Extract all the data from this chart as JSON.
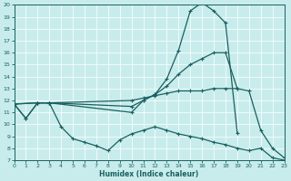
{
  "xlabel": "Humidex (Indice chaleur)",
  "xlim": [
    0,
    23
  ],
  "ylim": [
    7,
    20
  ],
  "xticks": [
    0,
    1,
    2,
    3,
    4,
    5,
    6,
    7,
    8,
    9,
    10,
    11,
    12,
    13,
    14,
    15,
    16,
    17,
    18,
    19,
    20,
    21,
    22,
    23
  ],
  "yticks": [
    7,
    8,
    9,
    10,
    11,
    12,
    13,
    14,
    15,
    16,
    17,
    18,
    19,
    20
  ],
  "background_color": "#c8ecec",
  "line_color": "#1a6060",
  "curve1": {
    "x": [
      0,
      1,
      2,
      3,
      10,
      11,
      12,
      13,
      14,
      15,
      16,
      17,
      18,
      19
    ],
    "y": [
      11.7,
      10.5,
      11.8,
      11.8,
      11.0,
      12.0,
      12.5,
      13.8,
      16.2,
      19.5,
      20.2,
      19.5,
      18.5,
      9.3
    ]
  },
  "curve2": {
    "x": [
      0,
      2,
      3,
      10,
      11,
      12,
      13,
      14,
      15,
      16,
      17,
      18,
      19
    ],
    "y": [
      11.7,
      11.8,
      11.8,
      11.5,
      12.0,
      12.5,
      13.2,
      14.2,
      15.0,
      15.5,
      16.0,
      16.0,
      13.0
    ]
  },
  "curve3": {
    "x": [
      0,
      2,
      3,
      10,
      11,
      12,
      13,
      14,
      15,
      16,
      17,
      18,
      19,
      20,
      21,
      22,
      23
    ],
    "y": [
      11.7,
      11.8,
      11.8,
      12.0,
      12.2,
      12.4,
      12.6,
      12.8,
      12.8,
      12.8,
      13.0,
      13.0,
      13.0,
      12.8,
      9.5,
      8.0,
      7.2
    ]
  },
  "curve4": {
    "x": [
      0,
      1,
      2,
      3,
      4,
      5,
      6,
      7,
      8,
      9,
      10,
      11,
      12,
      13,
      14,
      15,
      16,
      17,
      18,
      19,
      20,
      21,
      22,
      23
    ],
    "y": [
      11.7,
      10.5,
      11.8,
      11.8,
      9.8,
      8.8,
      8.5,
      8.2,
      7.8,
      8.7,
      9.2,
      9.5,
      9.8,
      9.5,
      9.2,
      9.0,
      8.8,
      8.5,
      8.3,
      8.0,
      7.8,
      8.0,
      7.2,
      7.0
    ]
  }
}
